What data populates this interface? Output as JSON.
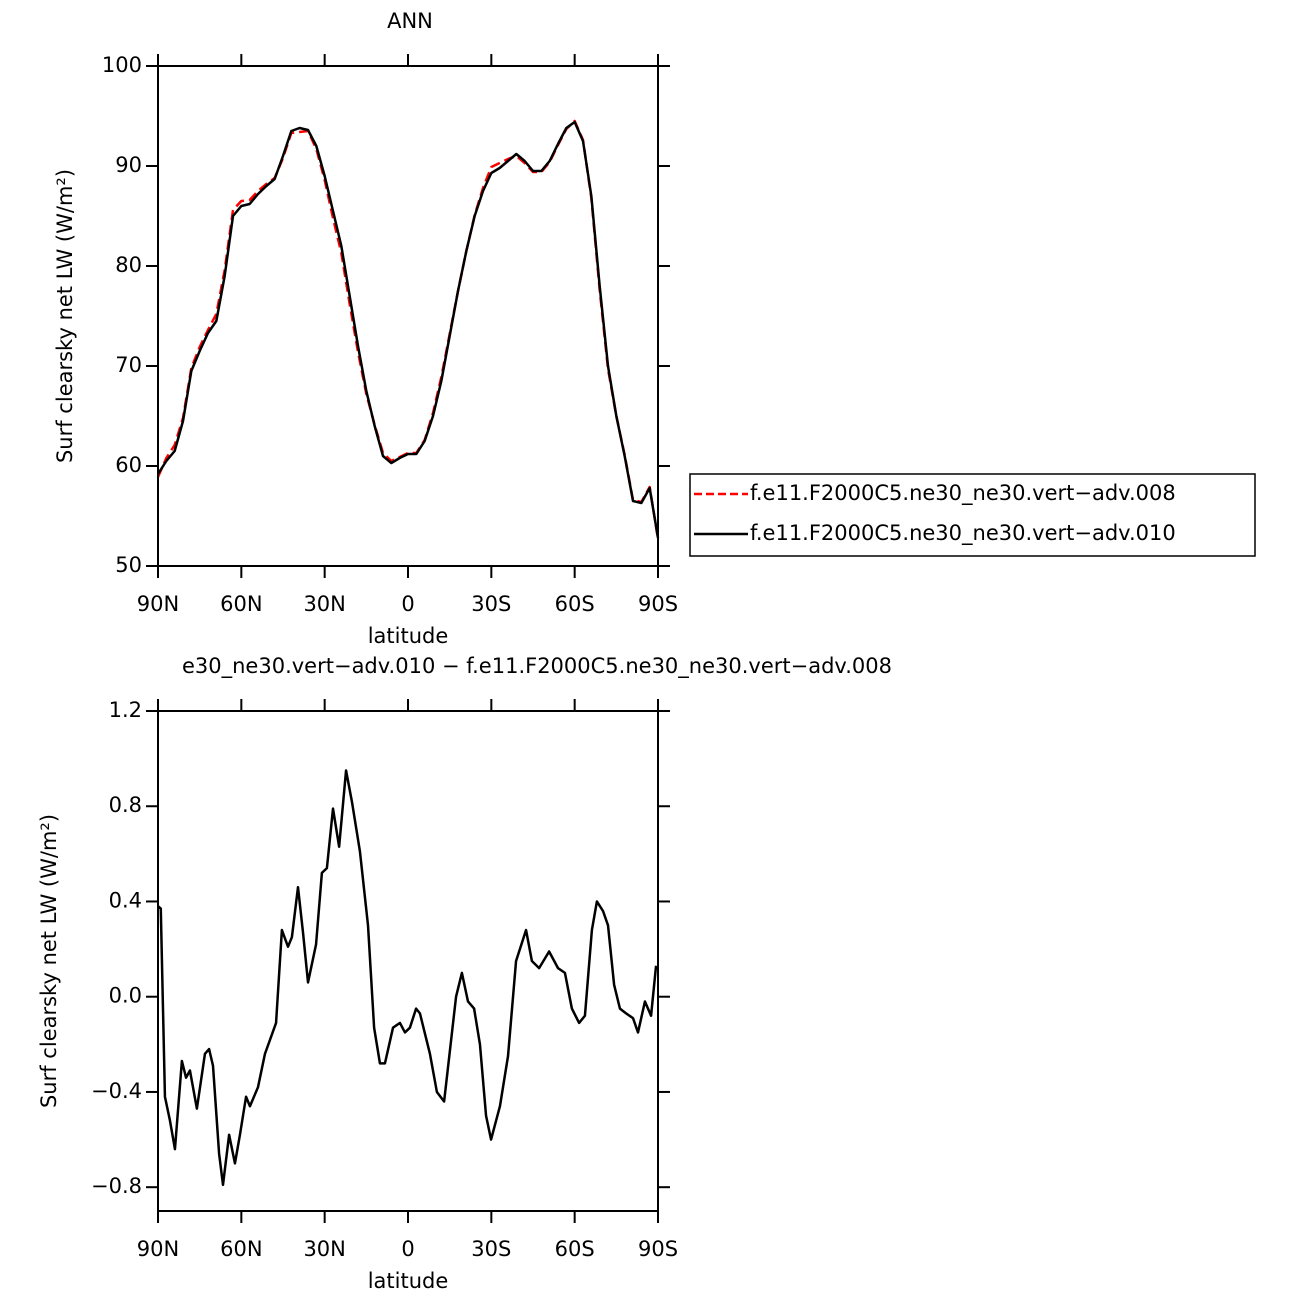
{
  "chart_data": [
    {
      "type": "line",
      "title": "ANN",
      "xlabel": "latitude",
      "ylabel": "Surf clearsky net LW (W/m²)",
      "xlim": [
        90,
        -90
      ],
      "xticks": [
        {
          "value": 90,
          "label": "90N"
        },
        {
          "value": 60,
          "label": "60N"
        },
        {
          "value": 30,
          "label": "30N"
        },
        0,
        {
          "value": -30,
          "label": "30S"
        },
        {
          "value": -60,
          "label": "60S"
        },
        {
          "value": -90,
          "label": "90S"
        }
      ],
      "ylim": [
        50,
        100
      ],
      "yticks": [
        50,
        60,
        70,
        80,
        90,
        100
      ],
      "x": [
        90,
        87,
        84,
        81,
        78,
        75,
        72,
        69,
        66,
        63,
        60,
        57,
        54,
        51,
        48,
        45,
        42,
        39,
        36,
        33,
        30,
        27,
        24,
        21,
        18,
        15,
        12,
        9,
        6,
        3,
        0,
        -3,
        -6,
        -9,
        -12,
        -15,
        -18,
        -21,
        -24,
        -27,
        -30,
        -33,
        -36,
        -39,
        -42,
        -45,
        -48,
        -51,
        -54,
        -57,
        -60,
        -63,
        -66,
        -69,
        -72,
        -75,
        -78,
        -81,
        -84,
        -87,
        -90
      ],
      "series": [
        {
          "name": "f.e11.F2000C5.ne30_ne30.vert−adv.008",
          "color": "#ff0000",
          "dashed": true,
          "values": [
            58.9,
            60.8,
            62.1,
            64.8,
            69.8,
            71.9,
            73.6,
            75.2,
            79.6,
            85.6,
            86.5,
            86.6,
            87.5,
            88.2,
            88.8,
            90.8,
            93.3,
            93.4,
            93.5,
            91.7,
            88.6,
            84.8,
            81.3,
            76.2,
            71.4,
            67.2,
            64.1,
            61.3,
            60.5,
            60.9,
            61.3,
            61.3,
            62.6,
            65.3,
            68.9,
            73.2,
            77.5,
            81.5,
            85.1,
            87.8,
            89.9,
            90.3,
            90.7,
            91.0,
            90.3,
            89.4,
            89.4,
            90.4,
            92.1,
            93.7,
            94.5,
            92.6,
            86.8,
            77.6,
            69.7,
            65.0,
            61.1,
            56.6,
            56.4,
            57.9,
            52.7
          ]
        },
        {
          "name": "f.e11.F2000C5.ne30_ne30.vert−adv.010",
          "color": "#000000",
          "dashed": false,
          "values": [
            59.2,
            60.5,
            61.5,
            64.5,
            69.5,
            71.5,
            73.3,
            74.5,
            79.0,
            85.0,
            86.0,
            86.2,
            87.2,
            88.0,
            88.7,
            91.0,
            93.5,
            93.8,
            93.6,
            92.0,
            89.0,
            85.5,
            82.0,
            77.0,
            72.0,
            67.5,
            64.0,
            61.0,
            60.3,
            60.8,
            61.2,
            61.2,
            62.5,
            65.0,
            68.5,
            73.0,
            77.5,
            81.5,
            85.0,
            87.5,
            89.3,
            89.8,
            90.5,
            91.2,
            90.5,
            89.5,
            89.5,
            90.5,
            92.2,
            93.8,
            94.4,
            92.5,
            87.0,
            78.0,
            70.0,
            65.0,
            61.0,
            56.5,
            56.3,
            57.8,
            52.8
          ]
        }
      ],
      "legend": "right"
    },
    {
      "type": "line",
      "title": "e30_ne30.vert−adv.010 − f.e11.F2000C5.ne30_ne30.vert−adv.008",
      "xlabel": "latitude",
      "ylabel": "Surf clearsky net LW (W/m²)",
      "xlim": [
        90,
        -90
      ],
      "xticks": [
        {
          "value": 90,
          "label": "90N"
        },
        {
          "value": 60,
          "label": "60N"
        },
        {
          "value": 30,
          "label": "30N"
        },
        0,
        {
          "value": -30,
          "label": "30S"
        },
        {
          "value": -60,
          "label": "60S"
        },
        {
          "value": -90,
          "label": "90S"
        }
      ],
      "ylim": [
        -0.9,
        1.2
      ],
      "yticks": [
        {
          "value": -0.8,
          "label": "−0.8"
        },
        {
          "value": -0.4,
          "label": "−0.4"
        },
        {
          "value": 0,
          "label": "0.0"
        },
        0.4,
        0.8,
        1.2
      ],
      "x": [
        90,
        89,
        87.5,
        85.7,
        83.9,
        81.4,
        79.9,
        78.5,
        76,
        73.1,
        71.6,
        70.2,
        68,
        66.6,
        64.4,
        62.3,
        60.5,
        58.3,
        56.9,
        54,
        51.5,
        47.5,
        45.4,
        43.2,
        41.8,
        39.6,
        37.8,
        36,
        33.1,
        31,
        29.2,
        27,
        24.8,
        22.3,
        20.2,
        17.3,
        14.4,
        12.2,
        10.1,
        8.3,
        5.4,
        2.9,
        1.1,
        -0.7,
        -2.9,
        -4.3,
        -7.9,
        -10.4,
        -13,
        -17.3,
        -19.4,
        -21.6,
        -23.8,
        -25.9,
        -28.1,
        -29.9,
        -33.1,
        -36,
        -38.9,
        -42.5,
        -44.6,
        -47.2,
        -50.8,
        -54,
        -56.5,
        -59,
        -61.6,
        -63.7,
        -66.2,
        -68,
        -70.2,
        -72,
        -74.2,
        -76.3,
        -78.5,
        -81,
        -82.8,
        -85.3,
        -87.5,
        -89.3
      ],
      "series": [
        {
          "color": "#000000",
          "dashed": false,
          "values": [
            0.38,
            0.37,
            -0.42,
            -0.52,
            -0.64,
            -0.27,
            -0.34,
            -0.31,
            -0.47,
            -0.24,
            -0.22,
            -0.29,
            -0.66,
            -0.79,
            -0.58,
            -0.7,
            -0.58,
            -0.42,
            -0.46,
            -0.38,
            -0.24,
            -0.11,
            0.28,
            0.21,
            0.25,
            0.46,
            0.27,
            0.06,
            0.22,
            0.52,
            0.54,
            0.79,
            0.63,
            0.95,
            0.82,
            0.61,
            0.3,
            -0.13,
            -0.28,
            -0.28,
            -0.13,
            -0.11,
            -0.15,
            -0.13,
            -0.05,
            -0.07,
            -0.24,
            -0.4,
            -0.44,
            0.0,
            0.1,
            -0.02,
            -0.05,
            -0.2,
            -0.5,
            -0.6,
            -0.46,
            -0.25,
            0.15,
            0.28,
            0.15,
            0.12,
            0.19,
            0.12,
            0.1,
            -0.05,
            -0.11,
            -0.08,
            0.28,
            0.4,
            0.36,
            0.3,
            0.05,
            -0.05,
            -0.07,
            -0.09,
            -0.15,
            -0.02,
            -0.08,
            0.13
          ]
        }
      ]
    }
  ]
}
